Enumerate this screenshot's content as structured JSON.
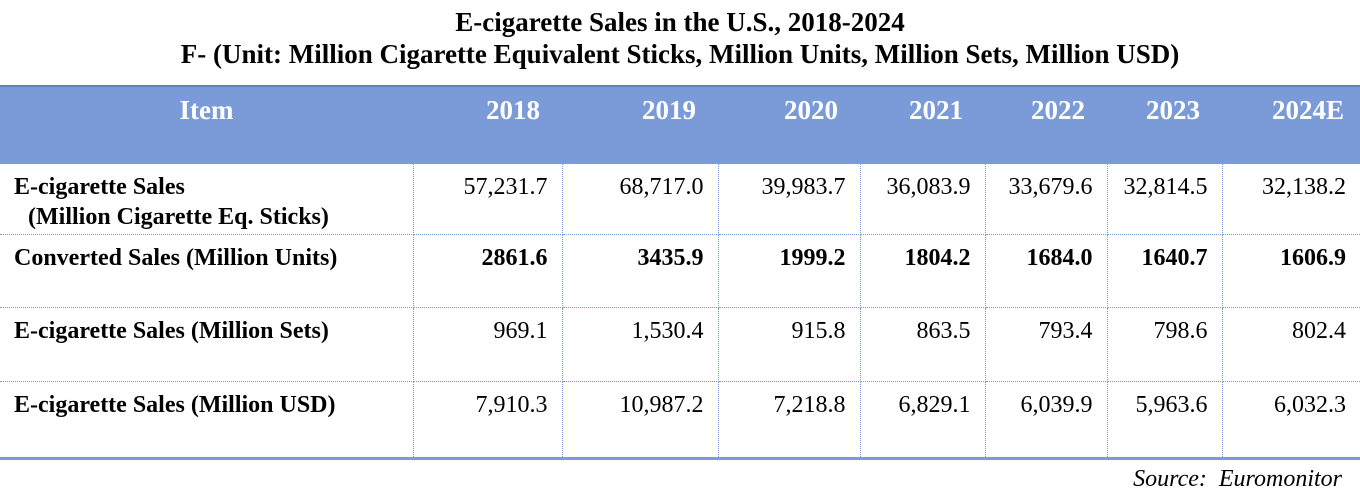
{
  "title": {
    "line1": "E-cigarette Sales in the U.S., 2018-2024",
    "line2": "F-  (Unit: Million Cigarette Equivalent Sticks, Million Units, Million Sets, Million USD)"
  },
  "table": {
    "headers": [
      "Item",
      "2018",
      "2019",
      "2020",
      "2021",
      "2022",
      "2023",
      "2024E"
    ],
    "rows": [
      {
        "label": "E-cigarette Sales",
        "label_sub": "(Million Cigarette Eq. Sticks)",
        "values": [
          "57,231.7",
          "68,717.0",
          "39,983.7",
          "36,083.9",
          "33,679.6",
          "32,814.5",
          "32,138.2"
        ]
      },
      {
        "label": "Converted Sales (Million Units)",
        "values": [
          "2861.6",
          "3435.9",
          "1999.2",
          "1804.2",
          "1684.0",
          "1640.7",
          "1606.9"
        ]
      },
      {
        "label": "E-cigarette Sales (Million Sets)",
        "values": [
          "969.1",
          "1,530.4",
          "915.8",
          "863.5",
          "793.4",
          "798.6",
          "802.4"
        ]
      },
      {
        "label": "E-cigarette Sales (Million USD)",
        "values": [
          "7,910.3",
          "10,987.2",
          "7,218.8",
          "6,829.1",
          "6,039.9",
          "5,963.6",
          "6,032.3"
        ]
      }
    ]
  },
  "source": "Source:  Euromonitor",
  "colors": {
    "header_bg": "#7b9bd8",
    "header_text": "#ffffff"
  }
}
